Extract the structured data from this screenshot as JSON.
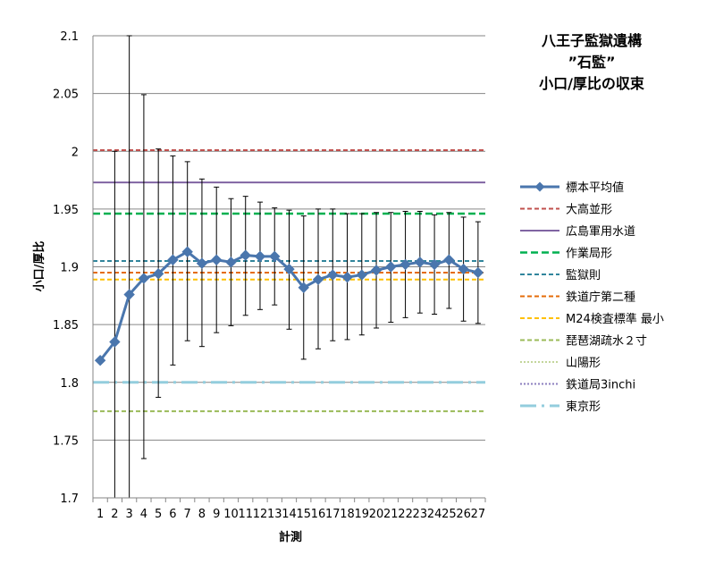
{
  "chart_data": {
    "type": "line",
    "title": [
      "八王子監獄遺構",
      "”石監”",
      "小口/厚比の収束"
    ],
    "xlabel": "計測",
    "ylabel": "小口/厚比",
    "categories": [
      "1",
      "2",
      "3",
      "4",
      "5",
      "6",
      "7",
      "8",
      "9",
      "10",
      "11",
      "12",
      "13",
      "14",
      "15",
      "16",
      "17",
      "18",
      "19",
      "20",
      "21",
      "22",
      "23",
      "24",
      "25",
      "26",
      "27"
    ],
    "y_ticks": [
      "1.7",
      "1.75",
      "1.8",
      "1.85",
      "1.9",
      "1.95",
      "2",
      "2.05",
      "2.1"
    ],
    "ylim": [
      1.7,
      2.1
    ],
    "grid": true,
    "legend_position": "right",
    "series": [
      {
        "name": "標本平均値",
        "kind": "line-markers",
        "color": "#4a76ad",
        "values": [
          1.819,
          1.835,
          1.876,
          1.89,
          1.894,
          1.906,
          1.913,
          1.903,
          1.906,
          1.904,
          1.91,
          1.909,
          1.909,
          1.898,
          1.882,
          1.889,
          1.893,
          1.891,
          1.893,
          1.897,
          1.9,
          1.902,
          1.904,
          1.902,
          1.906,
          1.898,
          1.895
        ],
        "error_low": [
          null,
          1.7,
          1.7,
          1.734,
          1.787,
          1.815,
          1.836,
          1.831,
          1.843,
          1.849,
          1.858,
          1.863,
          1.867,
          1.846,
          1.82,
          1.829,
          1.836,
          1.837,
          1.841,
          1.847,
          1.852,
          1.856,
          1.86,
          1.859,
          1.864,
          1.853,
          1.851
        ],
        "error_high": [
          null,
          2.0,
          2.1,
          2.049,
          2.002,
          1.996,
          1.991,
          1.976,
          1.969,
          1.959,
          1.961,
          1.956,
          1.951,
          1.949,
          1.944,
          1.95,
          1.95,
          1.946,
          1.946,
          1.947,
          1.947,
          1.948,
          1.948,
          1.945,
          1.947,
          1.943,
          1.939
        ]
      },
      {
        "name": "大高並形",
        "kind": "hline",
        "style": "dashed",
        "color": "#c0504d",
        "value": 2.001
      },
      {
        "name": "広島軍用水道",
        "kind": "hline",
        "style": "solid",
        "color": "#8064a2",
        "value": 1.973
      },
      {
        "name": "作業局形",
        "kind": "hline",
        "style": "dashed-heavy",
        "color": "#00b050",
        "value": 1.946
      },
      {
        "name": "監獄則",
        "kind": "hline",
        "style": "dashed",
        "color": "#31859c",
        "value": 1.905
      },
      {
        "name": "鉄道庁第二種",
        "kind": "hline",
        "style": "dashed",
        "color": "#e46c0a",
        "value": 1.895
      },
      {
        "name": "M24検査標準 最小",
        "kind": "hline",
        "style": "dashed",
        "color": "#ffc000",
        "value": 1.889
      },
      {
        "name": "琵琶湖疏水２寸",
        "kind": "hline",
        "style": "dashed",
        "color": "#9bbb59",
        "value": 1.775
      },
      {
        "name": "山陽形",
        "kind": "hline",
        "style": "dotted",
        "color": "#c3d69b",
        "value": null
      },
      {
        "name": "鉄道局3inchi",
        "kind": "hline",
        "style": "dotted",
        "color": "#8c7fbf",
        "value": null
      },
      {
        "name": "東京形",
        "kind": "hline",
        "style": "dash-dot",
        "color": "#93cddd",
        "value": 1.8
      }
    ]
  }
}
